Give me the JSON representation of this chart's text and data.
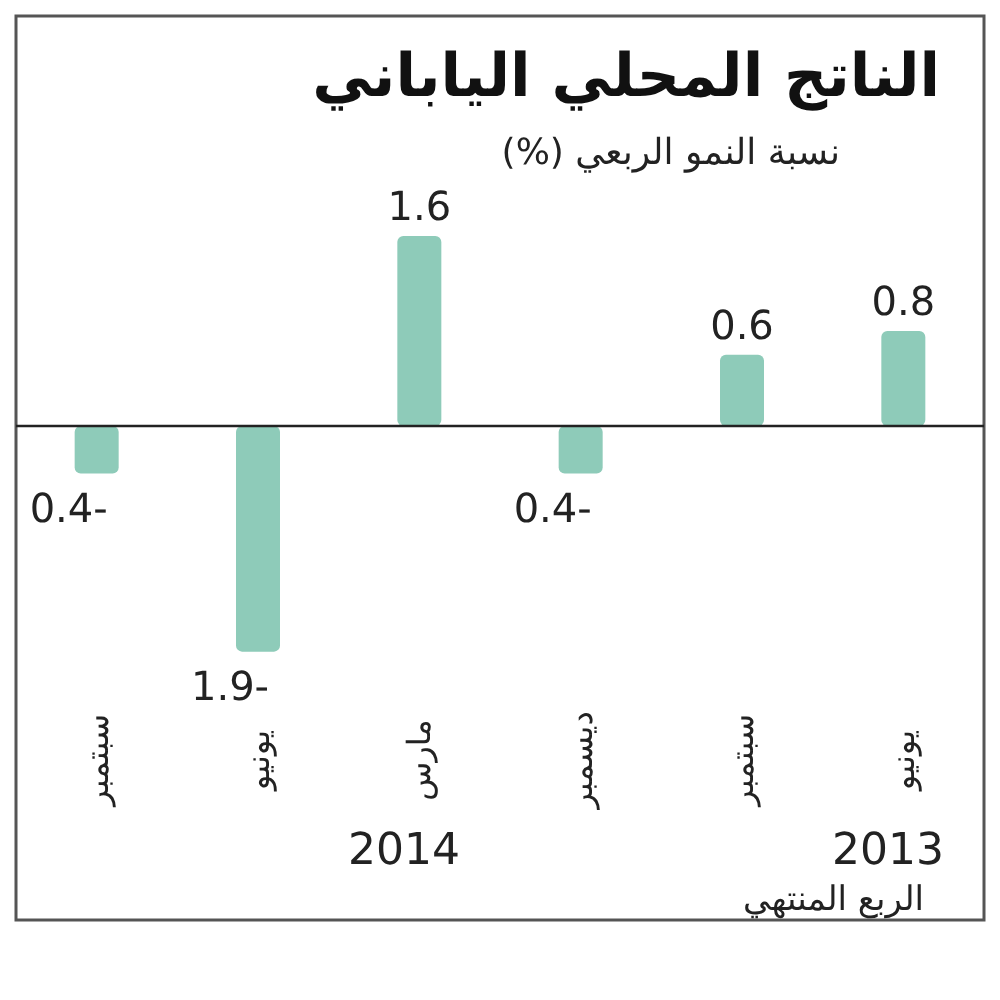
{
  "chart_data": {
    "type": "bar",
    "title": "الناتج المحلي الياباني",
    "subtitle": "نسبة النمو الربعي (%)",
    "xlabel": "الربع المنتهي",
    "categories": [
      "سبتمبر",
      "يونيو",
      "مارس",
      "ديسمبر",
      "سبتمبر",
      "يونيو"
    ],
    "values": [
      -0.4,
      -1.9,
      1.6,
      -0.4,
      0.6,
      0.8
    ],
    "value_labels": [
      "-0.4",
      "-1.9",
      "1.6",
      "-0.4",
      "0.6",
      "0.8"
    ],
    "color": "#8ecbb9",
    "annotations": [
      "2014",
      "2013"
    ]
  }
}
